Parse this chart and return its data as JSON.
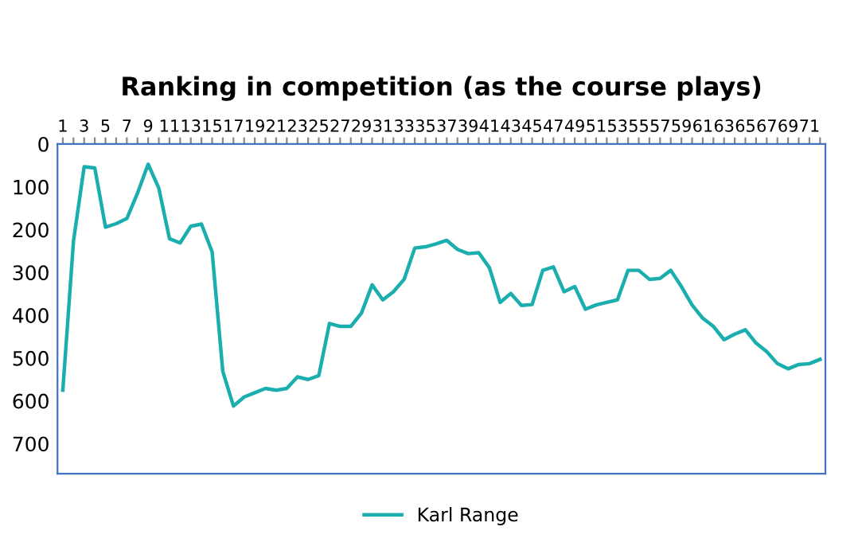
{
  "chart_data": {
    "type": "line",
    "title": "Ranking in competition (as the course plays)",
    "categories": [
      "1",
      null,
      "3",
      null,
      "5",
      null,
      "7",
      null,
      "9",
      null,
      "11",
      null,
      "13",
      null,
      "15",
      null,
      "17",
      null,
      "19",
      null,
      "21",
      null,
      "23",
      null,
      "25",
      null,
      "27",
      null,
      "29",
      null,
      "31",
      null,
      "33",
      null,
      "35",
      null,
      "37",
      null,
      "39",
      null,
      "41",
      null,
      "43",
      null,
      "45",
      null,
      "47",
      null,
      "49",
      null,
      "51",
      null,
      "53",
      null,
      "55",
      null,
      "57",
      null,
      "59",
      null,
      "61",
      null,
      "63",
      null,
      "65",
      null,
      "67",
      null,
      "69",
      null,
      "71",
      null
    ],
    "series": [
      {
        "name": "Karl Range",
        "color": "#1aaeae",
        "values": [
          575,
          227,
          53,
          56,
          194,
          186,
          174,
          115,
          47,
          103,
          221,
          231,
          192,
          187,
          252,
          531,
          612,
          591,
          581,
          571,
          575,
          571,
          544,
          550,
          541,
          419,
          426,
          426,
          395,
          329,
          364,
          345,
          316,
          243,
          240,
          233,
          225,
          246,
          256,
          254,
          289,
          370,
          349,
          377,
          375,
          295,
          287,
          345,
          333,
          386,
          376,
          370,
          364,
          295,
          295,
          316,
          314,
          295,
          333,
          376,
          407,
          426,
          457,
          444,
          434,
          465,
          485,
          513,
          525,
          515,
          513,
          503
        ]
      }
    ],
    "ylim": [
      770,
      0
    ],
    "yticks": [
      0,
      100,
      200,
      300,
      400,
      500,
      600,
      700
    ],
    "legend": "bottom",
    "grid": false,
    "marker": "none",
    "line_style": "solid"
  }
}
